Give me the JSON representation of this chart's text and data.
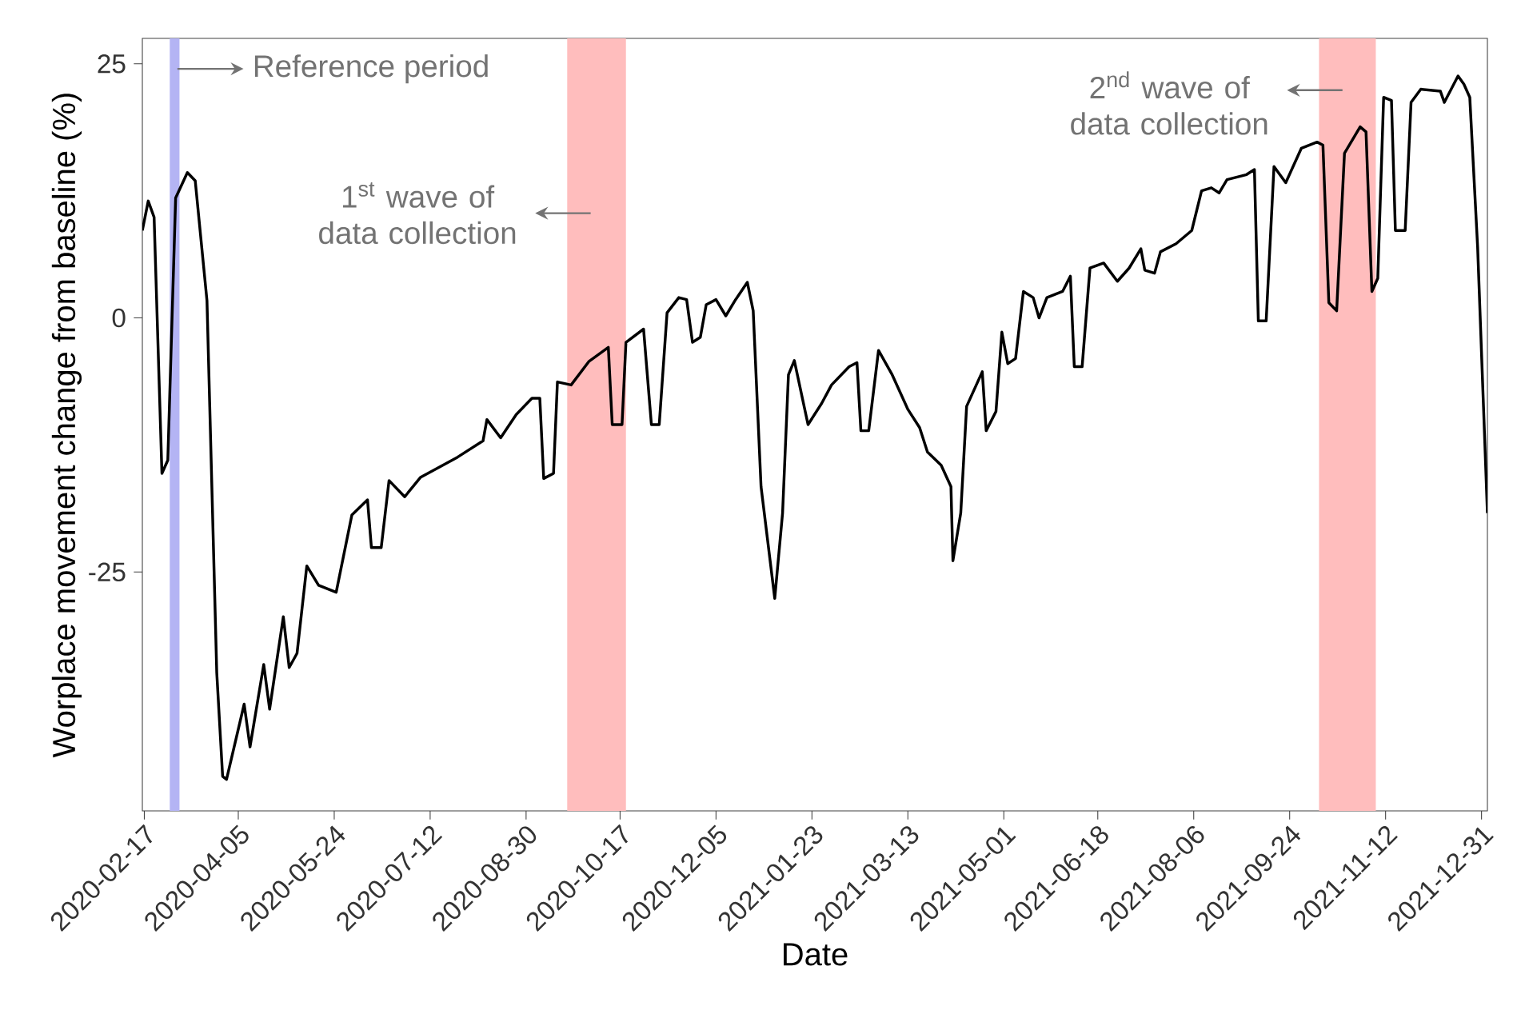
{
  "chart_data": {
    "type": "line",
    "xlabel": "Date",
    "ylabel": "Worplace movement change from baseline (%)",
    "x": [
      "2020-02-16",
      "2020-02-19",
      "2020-02-22",
      "2020-02-26",
      "2020-02-29",
      "2020-03-04",
      "2020-03-10",
      "2020-03-14",
      "2020-03-20",
      "2020-03-25",
      "2020-03-28",
      "2020-03-30",
      "2020-04-08",
      "2020-04-11",
      "2020-04-18",
      "2020-04-21",
      "2020-04-28",
      "2020-05-01",
      "2020-05-05",
      "2020-05-10",
      "2020-05-16",
      "2020-05-25",
      "2020-06-02",
      "2020-06-10",
      "2020-06-12",
      "2020-06-17",
      "2020-06-21",
      "2020-06-29",
      "2020-07-07",
      "2020-07-26",
      "2020-08-08",
      "2020-08-10",
      "2020-08-17",
      "2020-08-25",
      "2020-09-02",
      "2020-09-06",
      "2020-09-08",
      "2020-09-13",
      "2020-09-15",
      "2020-09-22",
      "2020-10-01",
      "2020-10-11",
      "2020-10-13",
      "2020-10-18",
      "2020-10-20",
      "2020-10-29",
      "2020-11-02",
      "2020-11-06",
      "2020-11-10",
      "2020-11-16",
      "2020-11-20",
      "2020-11-23",
      "2020-11-27",
      "2020-11-30",
      "2020-12-05",
      "2020-12-10",
      "2020-12-15",
      "2020-12-21",
      "2020-12-24",
      "2020-12-28",
      "2021-01-04",
      "2021-01-08",
      "2021-01-11",
      "2021-01-14",
      "2021-01-21",
      "2021-01-28",
      "2021-02-02",
      "2021-02-11",
      "2021-02-15",
      "2021-02-17",
      "2021-02-21",
      "2021-02-26",
      "2021-03-05",
      "2021-03-13",
      "2021-03-19",
      "2021-03-23",
      "2021-03-30",
      "2021-04-04",
      "2021-04-05",
      "2021-04-09",
      "2021-04-12",
      "2021-04-20",
      "2021-04-22",
      "2021-04-27",
      "2021-04-30",
      "2021-05-03",
      "2021-05-07",
      "2021-05-11",
      "2021-05-16",
      "2021-05-19",
      "2021-05-23",
      "2021-05-31",
      "2021-06-04",
      "2021-06-06",
      "2021-06-10",
      "2021-06-14",
      "2021-06-21",
      "2021-06-28",
      "2021-07-04",
      "2021-07-10",
      "2021-07-12",
      "2021-07-17",
      "2021-07-20",
      "2021-07-28",
      "2021-08-05",
      "2021-08-10",
      "2021-08-15",
      "2021-08-19",
      "2021-08-23",
      "2021-09-02",
      "2021-09-06",
      "2021-09-08",
      "2021-09-12",
      "2021-09-16",
      "2021-09-22",
      "2021-09-30",
      "2021-10-08",
      "2021-10-11",
      "2021-10-14",
      "2021-10-18",
      "2021-10-22",
      "2021-10-30",
      "2021-11-02",
      "2021-11-05",
      "2021-11-08",
      "2021-11-11",
      "2021-11-15",
      "2021-11-17",
      "2021-11-22",
      "2021-11-25",
      "2021-11-30",
      "2021-12-10",
      "2021-12-12",
      "2021-12-19",
      "2021-12-22",
      "2021-12-25",
      "2021-12-29",
      "2022-01-03"
    ],
    "series": [
      {
        "color": "#000000",
        "values": [
          8.6,
          11.5,
          9.9,
          -15.3,
          -14.0,
          11.8,
          14.3,
          13.5,
          1.7,
          -34.9,
          -45.1,
          -45.4,
          -38,
          -42.2,
          -34.1,
          -38.5,
          -29.4,
          -34.4,
          -33,
          -24.4,
          -26.3,
          -27,
          -19.4,
          -17.9,
          -22.6,
          -22.6,
          -16,
          -17.6,
          -15.7,
          -13.7,
          -12.1,
          -10,
          -11.8,
          -9.5,
          -7.9,
          -7.9,
          -15.8,
          -15.3,
          -6.3,
          -6.6,
          -4.3,
          -2.9,
          -10.5,
          -10.5,
          -2.4,
          -1.1,
          -10.5,
          -10.5,
          0.5,
          2,
          1.8,
          -2.4,
          -1.9,
          1.3,
          1.8,
          0.2,
          1.8,
          3.5,
          0.7,
          -16.6,
          -27.6,
          -19.2,
          -5.6,
          -4.2,
          -10.5,
          -8.4,
          -6.6,
          -4.8,
          -4.4,
          -11.1,
          -11.1,
          -3.2,
          -5.6,
          -9,
          -10.8,
          -13.2,
          -14.5,
          -16.6,
          -23.9,
          -19.2,
          -8.7,
          -5.3,
          -11.1,
          -9.2,
          -1.4,
          -4.5,
          -4,
          2.6,
          2,
          0,
          2,
          2.6,
          4.1,
          -4.8,
          -4.8,
          4.9,
          5.4,
          3.6,
          4.9,
          6.8,
          4.7,
          4.4,
          6.5,
          7.3,
          8.6,
          12.5,
          12.8,
          12.3,
          13.6,
          14.1,
          14.6,
          -0.3,
          -0.3,
          14.9,
          13.3,
          16.7,
          17.3,
          17,
          1.5,
          0.7,
          16.2,
          18.8,
          18.3,
          2.6,
          3.9,
          21.7,
          21.4,
          8.6,
          8.6,
          21.2,
          22.5,
          22.3,
          21.2,
          23.8,
          23,
          21.7,
          7,
          -19.2
        ]
      }
    ],
    "xlim": [
      "2020-02-16",
      "2022-01-03"
    ],
    "ylim": [
      -48.5,
      27.5
    ],
    "xticks": [
      "2020-02-17",
      "2020-04-05",
      "2020-05-24",
      "2020-07-12",
      "2020-08-30",
      "2020-10-17",
      "2020-12-05",
      "2021-01-23",
      "2021-03-13",
      "2021-05-01",
      "2021-06-18",
      "2021-08-06",
      "2021-09-24",
      "2021-11-12",
      "2021-12-31"
    ],
    "yticks": [
      -25,
      0,
      25
    ],
    "bands": [
      {
        "axis": "x",
        "from": "2020-03-01",
        "to": "2020-03-06",
        "color": "#b4b4f4",
        "label": "Reference period"
      },
      {
        "axis": "x",
        "from": "2020-09-20",
        "to": "2020-10-20",
        "color": "#ffbdbd",
        "label": "1$^{st}$ wave of data collection"
      },
      {
        "axis": "x",
        "from": "2021-10-09",
        "to": "2021-11-07",
        "color": "#ffbdbd",
        "label": "2$^{nd}$ wave of data collection"
      }
    ],
    "grid": false
  }
}
